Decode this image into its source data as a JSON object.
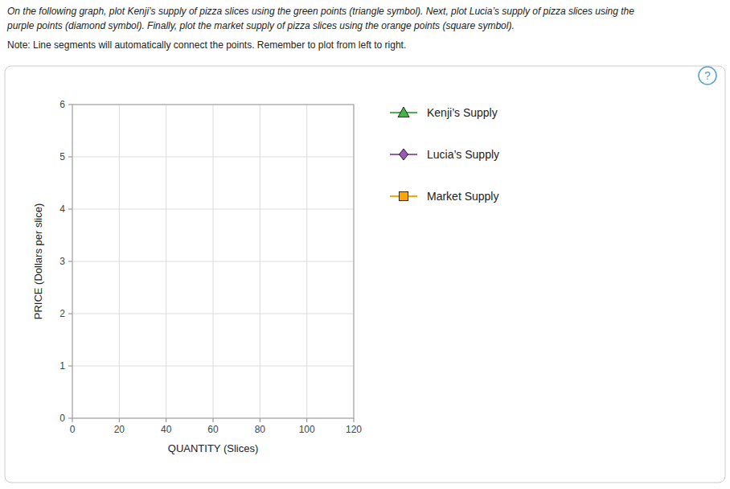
{
  "chart_data": {
    "type": "line",
    "annotations": [
      "On the following graph, plot Kenji’s supply of pizza slices using the green points (triangle symbol). Next, plot Lucia’s supply of pizza slices using the",
      "purple points (diamond symbol). Finally, plot the market supply of pizza slices using the orange points (square symbol).",
      "Note: Line segments will automatically connect the points. Remember to plot from left to right.",
      "?"
    ],
    "x_label": "QUANTITY (Slices)",
    "y_label": "PRICE (Dollars per slice)",
    "x": [],
    "series": [
      {
        "name": "Kenji’s Supply",
        "color": "#4CAF50",
        "marker": "triangle",
        "values": []
      },
      {
        "name": "Lucia’s Supply",
        "color": "#9B59B6",
        "marker": "diamond",
        "values": []
      },
      {
        "name": "Market Supply",
        "color": "#FFA500",
        "marker": "square",
        "values": []
      }
    ],
    "xlim": [
      0,
      120
    ],
    "ylim": [
      0,
      6
    ],
    "xticks": [
      0,
      20,
      40,
      60,
      80,
      100,
      120
    ],
    "yticks": [
      0,
      1,
      2,
      3,
      4,
      5,
      6
    ],
    "grid": true,
    "legend": "right"
  }
}
